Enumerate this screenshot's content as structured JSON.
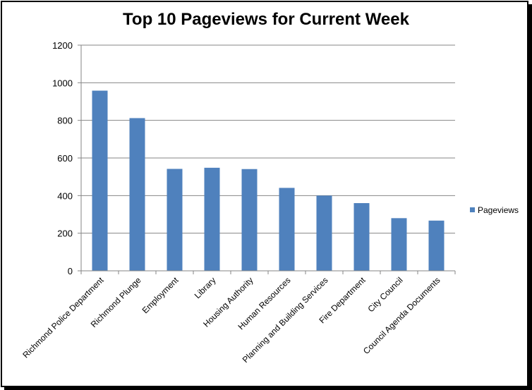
{
  "chart_data": {
    "type": "bar",
    "title": "Top 10 Pageviews for Current Week",
    "categories": [
      "Richmond Police Department",
      "Richmond Plunge",
      "Employment",
      "Library",
      "Housing Authority",
      "Human Resources",
      "Planning and Building Services",
      "Fire Department",
      "City Council",
      "Council Agenda Documents"
    ],
    "series": [
      {
        "name": "Pageviews",
        "values": [
          958,
          812,
          542,
          548,
          541,
          441,
          400,
          360,
          280,
          267
        ]
      }
    ],
    "ylim": [
      0,
      1200
    ],
    "yticks": [
      "0",
      "200",
      "400",
      "600",
      "800",
      "1000",
      "1200"
    ],
    "grid": true,
    "legend": "right",
    "colors": {
      "bar": "#4f81bd",
      "grid": "#868686",
      "axis": "#868686"
    }
  }
}
